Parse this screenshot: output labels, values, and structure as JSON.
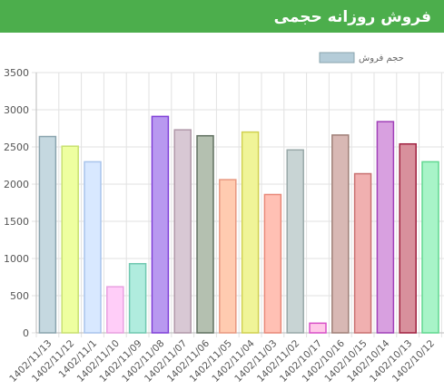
{
  "header": {
    "title": "فروش روزانه حجمی"
  },
  "chart_data": {
    "type": "bar",
    "title": "",
    "xlabel": "",
    "ylabel": "",
    "ylim": [
      0,
      3500
    ],
    "yticks": [
      0,
      500,
      1000,
      1500,
      2000,
      2500,
      3000,
      3500
    ],
    "grid": true,
    "legend_position": "top",
    "categories": [
      "1402/11/13",
      "1402/11/12",
      "1402/11/1",
      "1402/11/10",
      "1402/11/09",
      "1402/11/08",
      "1402/11/07",
      "1402/11/06",
      "1402/11/05",
      "1402/11/04",
      "1402/11/03",
      "1402/11/02",
      "1402/10/17",
      "1402/10/16",
      "1402/10/15",
      "1402/10/14",
      "1402/10/13",
      "1402/10/12"
    ],
    "series": [
      {
        "name": "حجم فروش",
        "legend_color": "#b4ccd8",
        "values": [
          2640,
          2510,
          2300,
          620,
          930,
          2910,
          2730,
          2650,
          2060,
          2700,
          1860,
          2460,
          130,
          2660,
          2140,
          2840,
          2540,
          2300
        ],
        "fills": [
          "#c5d8e0",
          "#eeffa0",
          "#d8e8ff",
          "#ffcdf8",
          "#b0ecde",
          "#b898f0",
          "#d8c8d4",
          "#b4c0b0",
          "#ffcbb0",
          "#f0f498",
          "#ffc0b4",
          "#c8d4d4",
          "#ffc8e8",
          "#d8b8b4",
          "#f0b0b0",
          "#d8a0e0",
          "#d8909c",
          "#a8f4c8"
        ],
        "strokes": [
          "#8aa4ae",
          "#c8e070",
          "#a8c4ec",
          "#e8a0e0",
          "#70c8b0",
          "#8040d8",
          "#b098a8",
          "#607060",
          "#e89880",
          "#d0d050",
          "#e88878",
          "#98a8a8",
          "#d850c8",
          "#a08078",
          "#c87070",
          "#a040b8",
          "#a02040",
          "#60d890"
        ]
      }
    ]
  }
}
